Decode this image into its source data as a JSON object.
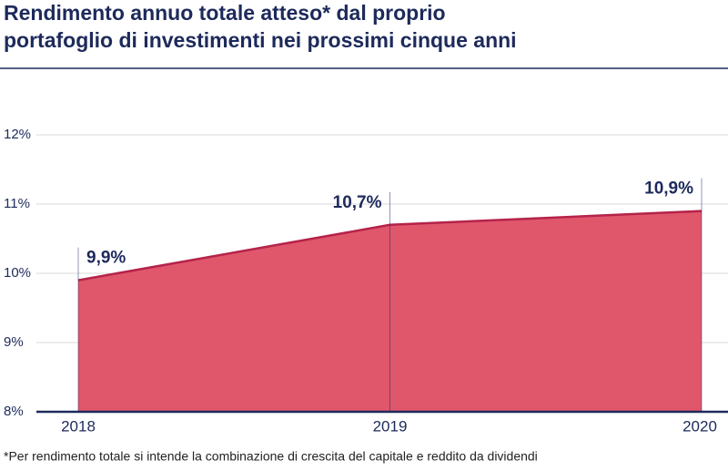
{
  "chart_data": {
    "type": "area",
    "title": [
      "Rendimento annuo totale atteso* dal proprio",
      "portafoglio di investimenti nei prossimi cinque anni"
    ],
    "categories": [
      "2018",
      "2019",
      "2020"
    ],
    "values": [
      9.9,
      10.7,
      10.9
    ],
    "value_labels": [
      "9,9%",
      "10,7%",
      "10,9%"
    ],
    "color": "#e0566b",
    "line_color": "#b5234a",
    "ylim": [
      8,
      12
    ],
    "yticks": [
      {
        "value": 8,
        "label": "8%"
      },
      {
        "value": 9,
        "label": "9%"
      },
      {
        "value": 10,
        "label": "10%"
      },
      {
        "value": 11,
        "label": "11%"
      },
      {
        "value": 12,
        "label": "12%"
      }
    ],
    "grid": true,
    "footnote": "*Per rendimento totale si intende la combinazione di crescita del capitale e reddito da dividendi"
  }
}
